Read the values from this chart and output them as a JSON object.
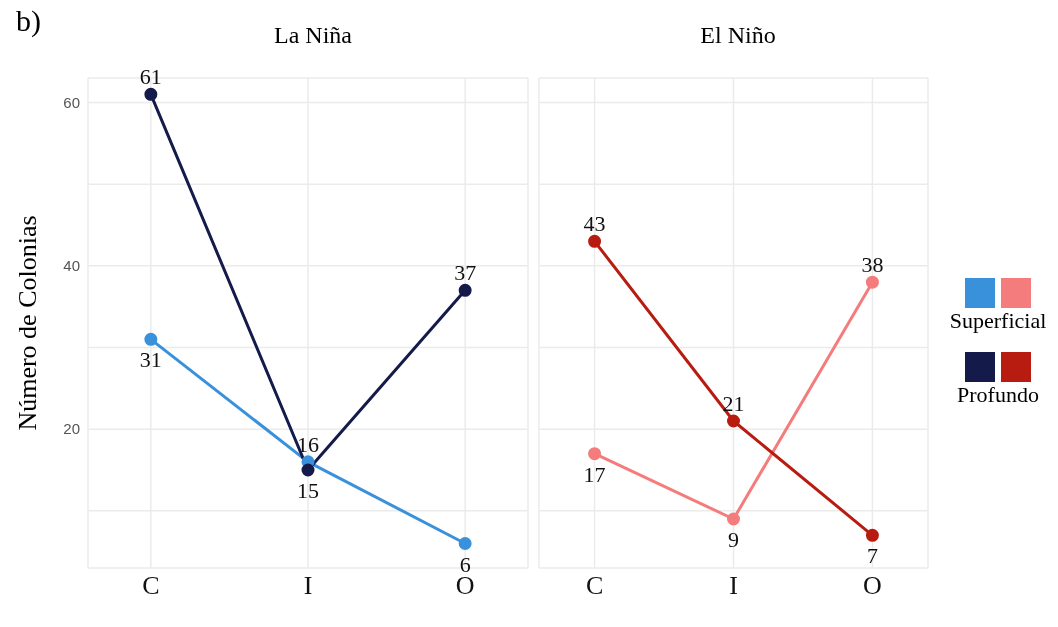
{
  "chart_data": [
    {
      "type": "line",
      "title": "La Niña",
      "ylabel": "Número de Colonias",
      "annotations": [
        "b)"
      ],
      "categories": [
        "C",
        "I",
        "O"
      ],
      "series": [
        {
          "name": "Superficial",
          "color": "#3a91db",
          "values": [
            31,
            16,
            6
          ]
        },
        {
          "name": "Profundo",
          "color": "#141a4a",
          "values": [
            61,
            15,
            37
          ]
        }
      ],
      "ylim": [
        3,
        63
      ],
      "yticks": [
        {
          "value": 10,
          "label": null
        },
        20,
        {
          "value": 30,
          "label": null
        },
        40,
        {
          "value": 50,
          "label": null
        },
        60
      ],
      "grid": true,
      "marker": "circle",
      "data_labels": true,
      "legend": "right"
    },
    {
      "type": "line",
      "title": "El Niño",
      "categories": [
        "C",
        "I",
        "O"
      ],
      "series": [
        {
          "color": "#f47c7c",
          "values": [
            17,
            9,
            38
          ]
        },
        {
          "color": "#b81c10",
          "values": [
            43,
            21,
            7
          ]
        }
      ],
      "ylim": [
        3,
        63
      ],
      "yticks": [
        {
          "value": 10,
          "label": null
        },
        20,
        {
          "value": 30,
          "label": null
        },
        40,
        {
          "value": 50,
          "label": null
        },
        60
      ],
      "tick_labels": "x",
      "grid": true,
      "marker": "circle",
      "data_labels": true
    }
  ]
}
